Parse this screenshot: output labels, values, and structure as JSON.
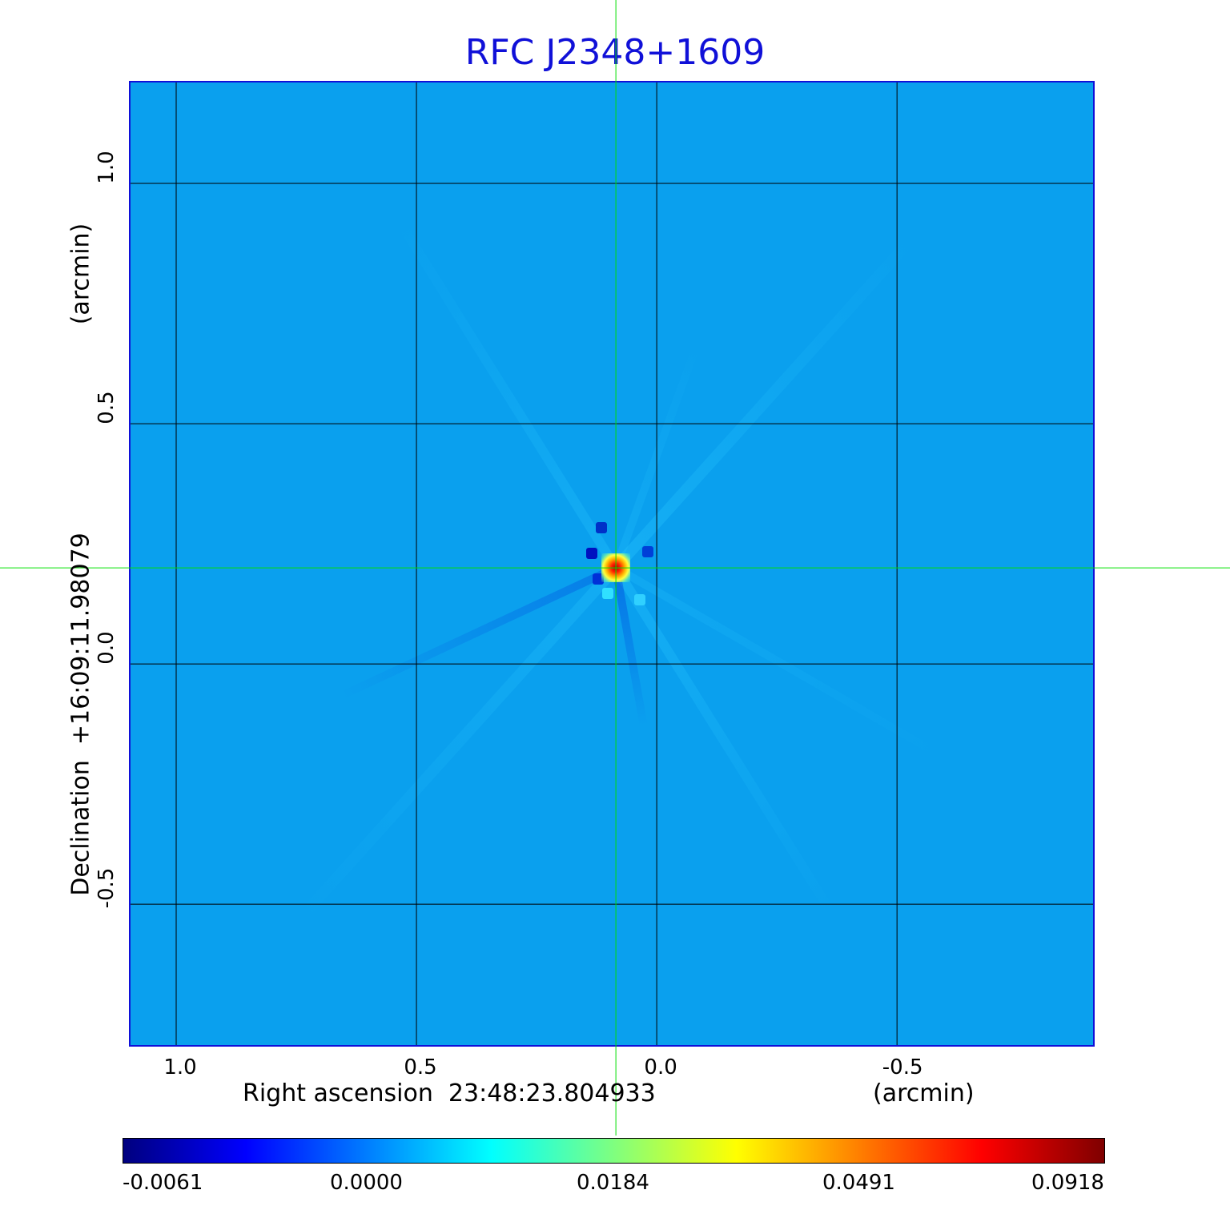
{
  "chart_data": {
    "type": "heatmap",
    "title": "RFC J2348+1609",
    "xlabel": "Right ascension  23:48:23.804933",
    "xunit": "(arcmin)",
    "ylabel": "Declination  +16:09:11.98079",
    "yunit": "(arcmin)",
    "x_ticks": [
      "1.0",
      "0.5",
      "0.0",
      "-0.5"
    ],
    "y_ticks": [
      "1.0",
      "0.5",
      "0.0",
      "-0.5"
    ],
    "x_tick_values": [
      1.0,
      0.5,
      0.0,
      -0.5
    ],
    "y_tick_values": [
      1.0,
      0.5,
      0.0,
      -0.5
    ],
    "xlim": [
      1.095,
      -0.908
    ],
    "ylim": [
      -0.793,
      1.21
    ],
    "grid": true,
    "crosshair": {
      "x": 0.085,
      "y": 0.2
    },
    "colormap": "jet",
    "colorbar_ticks": [
      "-0.0061",
      "0.0000",
      "0.0184",
      "0.0491",
      "0.0918"
    ],
    "colorbar_range": [
      -0.0061,
      0.0918
    ],
    "peak": {
      "x": 0.085,
      "y": 0.2,
      "value": 0.0918
    }
  },
  "colors": {
    "title": "#1010d8",
    "frame": "#1010d8",
    "background_map": "#0aa0ee",
    "grid": "#000000",
    "crosshair": "#00e000"
  }
}
